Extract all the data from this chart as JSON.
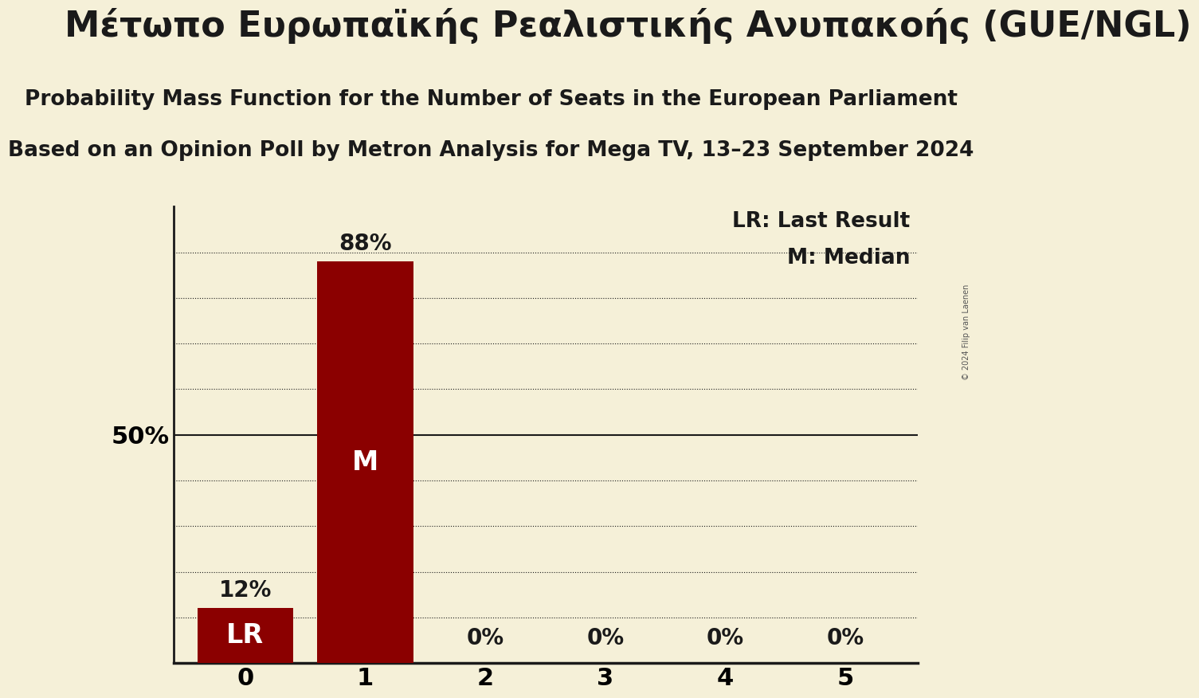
{
  "title_greek": "Μέτωπο Ευρωπαϊκής Ρεαλιστικής Ανυπακοής (GUE/NGL)",
  "subtitle1": "Probability Mass Function for the Number of Seats in the European Parliament",
  "subtitle2": "Based on an Opinion Poll by Metron Analysis for Mega TV, 13–23 September 2024",
  "seats": [
    0,
    1,
    2,
    3,
    4,
    5
  ],
  "probabilities": [
    0.12,
    0.88,
    0.0,
    0.0,
    0.0,
    0.0
  ],
  "bar_color": "#8b0000",
  "background_color": "#f5f0d8",
  "text_color": "#1a1a1a",
  "bar_labels": [
    "LR",
    "M",
    "",
    "",
    "",
    ""
  ],
  "bar_label_color": [
    "#ffffff",
    "#ffffff",
    "#1a1a1a",
    "#1a1a1a",
    "#1a1a1a",
    "#1a1a1a"
  ],
  "prob_labels": [
    "12%",
    "88%",
    "0%",
    "0%",
    "0%",
    "0%"
  ],
  "prob_label_above": [
    true,
    true,
    false,
    false,
    false,
    false
  ],
  "legend_LR": "LR: Last Result",
  "legend_M": "M: Median",
  "ylabel_50": "50%",
  "ylim": [
    0,
    1.0
  ],
  "yticks_dotted": [
    0.1,
    0.2,
    0.3,
    0.4,
    0.6,
    0.7,
    0.8,
    0.9
  ],
  "ytick_solid": 0.5,
  "copyright": "© 2024 Filip van Laenen",
  "title_fontsize": 32,
  "subtitle_fontsize": 19,
  "bar_label_fontsize": 24,
  "prob_label_fontsize": 20,
  "axis_tick_fontsize": 22,
  "legend_fontsize": 19,
  "ylabel_fontsize": 22
}
